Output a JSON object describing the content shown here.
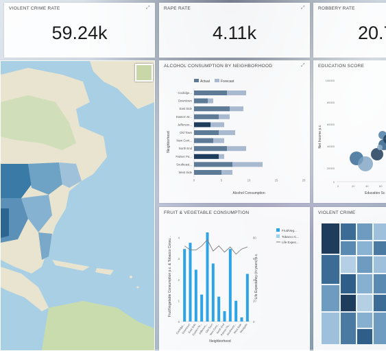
{
  "kpis": {
    "violent_crime": {
      "title": "VIOLENT CRIME RATE",
      "value": "59.24k"
    },
    "rape": {
      "title": "RAPE RATE",
      "value": "4.11k"
    },
    "robbery": {
      "title": "ROBBERY RATE",
      "value": "20.7"
    }
  },
  "alcohol": {
    "title": "ALCOHOL CONSUMPTION BY NEIGHBORHOOD",
    "legend": [
      "Actual",
      "Forecast"
    ],
    "ylabel": "Neighborhood",
    "xlabel": "Alcohol Consumption",
    "colors": {
      "actual_dark": "#1e3d5c",
      "actual": "#5d7a96",
      "forecast": "#a9b9cf"
    }
  },
  "education": {
    "title": "EDUCATION SCORE",
    "ylabel": "Net Income p.c.",
    "xlabel": "Education Sc",
    "yticks": [
      "100000",
      "80000",
      "60000",
      "40000",
      "20000",
      "0"
    ],
    "xticks": [
      "0",
      "20",
      "40",
      "60"
    ]
  },
  "fruit": {
    "title": "FRUIT & VEGETABLE CONSUMPTION",
    "ylabel": "Fruit/Vegetable Consumption p.c. & Tobacco Consu...",
    "y2label": "Life Expectancy (in years) p.c.",
    "xlabel": "Neighborhood",
    "legend": [
      "Fruit/Veg...",
      "Tobacco C...",
      "Life Expec..."
    ],
    "colors": {
      "bar": "#2ea3e6",
      "bar_light": "#9cd3f2",
      "line": "#7a7a7a"
    }
  },
  "violent": {
    "title": "VIOLENT CRIME"
  },
  "map": {
    "colors": {
      "water": "#a8cfe3",
      "land": "#e9e4cf",
      "green": "#b8d3a0",
      "state_dark": "#3a7aa6",
      "state_mid": "#6ea3c6",
      "state_light": "#9fc2da"
    }
  },
  "chart_data": [
    {
      "type": "bar",
      "title": "ALCOHOL CONSUMPTION BY NEIGHBORHOOD",
      "xlabel": "Alcohol Consumption",
      "ylabel": "Neighborhood",
      "categories": [
        "Coolidge...",
        "Downtown",
        "East Side",
        "Eastern M...",
        "Jefferson...",
        "Old Town",
        "New Cent...",
        "North End",
        "Palmer Pa...",
        "Southeast...",
        "West Side"
      ],
      "series": [
        {
          "name": "Actual",
          "values": [
            6.0,
            2.5,
            6.5,
            4.5,
            3.0,
            4.5,
            3.5,
            6.0,
            4.5,
            7.0,
            5.0
          ]
        },
        {
          "name": "Forecast",
          "values": [
            9.5,
            3.5,
            9.0,
            6.5,
            5.5,
            7.5,
            5.5,
            9.5,
            5.5,
            12.5,
            7.0
          ]
        }
      ],
      "xticks": [
        "0",
        "5",
        "10",
        "15",
        "20"
      ],
      "xlim": [
        0,
        20
      ]
    },
    {
      "type": "bar",
      "title": "FRUIT & VEGETABLE CONSUMPTION",
      "xlabel": "Neighborhood",
      "categories": [
        "Coolidge...",
        "Downtown",
        "East Side",
        "Eastern M...",
        "Jefferson...",
        "Old Town",
        "New Cent...",
        "North End",
        "Palmer Pa...",
        "Southeast...",
        "West Side",
        "Westgate"
      ],
      "series": [
        {
          "name": "Fruit/Veg...",
          "values": [
            3.5,
            3.8,
            2.5,
            1.3,
            4.3,
            2.8,
            1.2,
            0.5,
            3.5,
            1.0,
            0.2,
            2.3
          ]
        },
        {
          "name": "Life Expec...",
          "values": [
            73,
            69,
            69,
            73,
            79,
            68,
            73,
            67,
            72,
            65,
            70,
            72
          ]
        }
      ],
      "yticks": [
        "0",
        "1",
        "2",
        "3",
        "4"
      ],
      "y2ticks": [
        "0",
        "20",
        "40",
        "60",
        "80"
      ]
    }
  ]
}
